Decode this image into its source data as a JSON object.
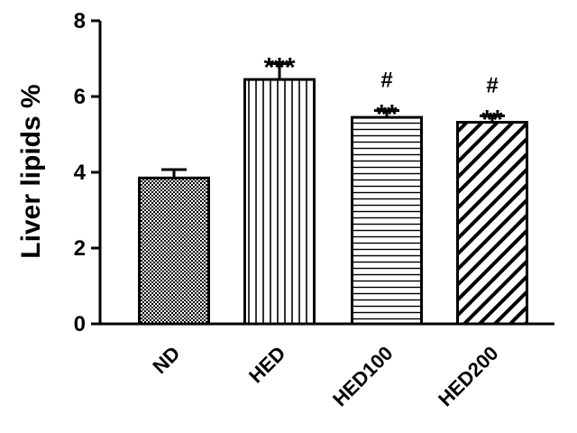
{
  "chart_data": {
    "type": "bar",
    "title": "",
    "xlabel": "",
    "ylabel": "Liver lipids %",
    "ylim": [
      0,
      8
    ],
    "yticks": [
      0,
      2,
      4,
      6,
      8
    ],
    "grid": false,
    "legend": "none",
    "categories": [
      "ND",
      "HED",
      "HED100",
      "HED200"
    ],
    "values": [
      3.85,
      6.45,
      5.45,
      5.32
    ],
    "errors": [
      0.22,
      0.42,
      0.18,
      0.17
    ],
    "patterns": [
      "checkerboard",
      "vertical-lines",
      "horizontal-lines",
      "diagonal-lines"
    ],
    "annotations": [
      {
        "category": "ND",
        "lines": []
      },
      {
        "category": "HED",
        "lines": [
          "***"
        ]
      },
      {
        "category": "HED100",
        "lines": [
          "#",
          "**"
        ]
      },
      {
        "category": "HED200",
        "lines": [
          "#",
          "**"
        ]
      }
    ],
    "colors": {
      "bar_stroke": "#000000",
      "pattern": "#000000",
      "background": "#ffffff"
    }
  }
}
